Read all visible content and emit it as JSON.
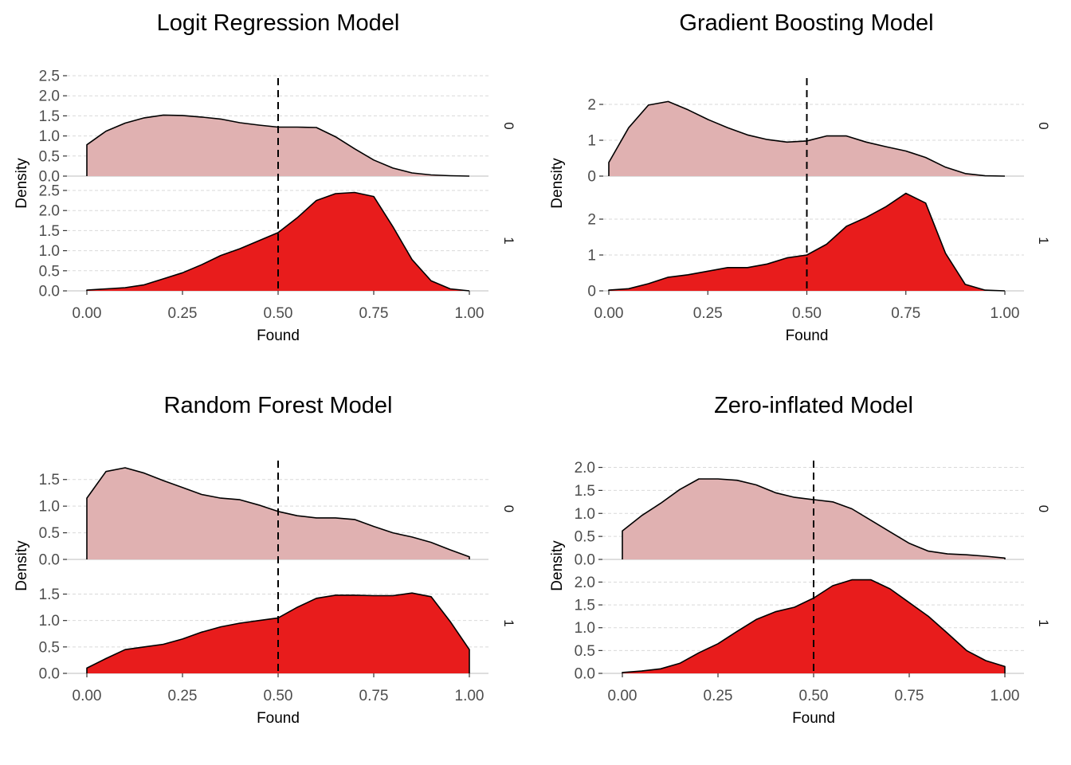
{
  "chart_data": [
    {
      "type": "area",
      "title": "Logit Regression Model",
      "xlabel": "Found",
      "ylabel": "Density",
      "xlim": [
        0,
        1
      ],
      "x_ticks": [
        "0.00",
        "0.25",
        "0.50",
        "0.75",
        "1.00"
      ],
      "cutoff": 0.5,
      "colors": {
        "0": "#e0b1b1",
        "1": "#e81c1c"
      },
      "panels": [
        {
          "strip": "0",
          "ylim": [
            0,
            2.5
          ],
          "y_ticks": [
            "0.0",
            "0.5",
            "1.0",
            "1.5",
            "2.0",
            "2.5"
          ],
          "x": [
            0,
            0.05,
            0.1,
            0.15,
            0.2,
            0.25,
            0.3,
            0.35,
            0.4,
            0.45,
            0.5,
            0.55,
            0.6,
            0.65,
            0.7,
            0.75,
            0.8,
            0.85,
            0.9,
            0.95,
            1.0
          ],
          "y": [
            0.78,
            1.12,
            1.32,
            1.45,
            1.52,
            1.51,
            1.47,
            1.42,
            1.33,
            1.27,
            1.22,
            1.22,
            1.21,
            0.98,
            0.68,
            0.4,
            0.2,
            0.08,
            0.03,
            0.01,
            0.0
          ]
        },
        {
          "strip": "1",
          "ylim": [
            0,
            2.5
          ],
          "y_ticks": [
            "0.0",
            "0.5",
            "1.0",
            "1.5",
            "2.0",
            "2.5"
          ],
          "x": [
            0,
            0.05,
            0.1,
            0.15,
            0.2,
            0.25,
            0.3,
            0.35,
            0.4,
            0.45,
            0.5,
            0.55,
            0.6,
            0.65,
            0.7,
            0.75,
            0.8,
            0.85,
            0.9,
            0.95,
            1.0
          ],
          "y": [
            0.02,
            0.05,
            0.08,
            0.15,
            0.3,
            0.45,
            0.65,
            0.88,
            1.05,
            1.25,
            1.45,
            1.82,
            2.25,
            2.42,
            2.45,
            2.35,
            1.6,
            0.78,
            0.25,
            0.05,
            0.0
          ]
        }
      ]
    },
    {
      "type": "area",
      "title": "Gradient Boosting Model",
      "xlabel": "Found",
      "ylabel": "Density",
      "xlim": [
        0,
        1
      ],
      "x_ticks": [
        "0.00",
        "0.25",
        "0.50",
        "0.75",
        "1.00"
      ],
      "cutoff": 0.5,
      "colors": {
        "0": "#e0b1b1",
        "1": "#e81c1c"
      },
      "panels": [
        {
          "strip": "0",
          "ylim": [
            0,
            2.8
          ],
          "y_ticks": [
            "0",
            "1",
            "2"
          ],
          "x": [
            0,
            0.05,
            0.1,
            0.15,
            0.2,
            0.25,
            0.3,
            0.35,
            0.4,
            0.45,
            0.5,
            0.55,
            0.6,
            0.65,
            0.7,
            0.75,
            0.8,
            0.85,
            0.9,
            0.95,
            1.0
          ],
          "y": [
            0.38,
            1.35,
            1.98,
            2.08,
            1.85,
            1.58,
            1.35,
            1.15,
            1.02,
            0.95,
            0.98,
            1.12,
            1.12,
            0.95,
            0.82,
            0.7,
            0.52,
            0.25,
            0.07,
            0.01,
            0.0
          ]
        },
        {
          "strip": "1",
          "ylim": [
            0,
            2.8
          ],
          "y_ticks": [
            "0",
            "1",
            "2"
          ],
          "x": [
            0,
            0.05,
            0.1,
            0.15,
            0.2,
            0.25,
            0.3,
            0.35,
            0.4,
            0.45,
            0.5,
            0.55,
            0.6,
            0.65,
            0.7,
            0.75,
            0.8,
            0.85,
            0.9,
            0.95,
            1.0
          ],
          "y": [
            0.02,
            0.06,
            0.2,
            0.38,
            0.45,
            0.55,
            0.65,
            0.65,
            0.75,
            0.92,
            1.0,
            1.3,
            1.8,
            2.05,
            2.35,
            2.72,
            2.45,
            1.05,
            0.18,
            0.02,
            0.0
          ]
        }
      ]
    },
    {
      "type": "area",
      "title": "Random Forest Model",
      "xlabel": "Found",
      "ylabel": "Density",
      "xlim": [
        0,
        1
      ],
      "x_ticks": [
        "0.00",
        "0.25",
        "0.50",
        "0.75",
        "1.00"
      ],
      "cutoff": 0.5,
      "colors": {
        "0": "#e0b1b1",
        "1": "#e81c1c"
      },
      "panels": [
        {
          "strip": "0",
          "ylim": [
            0,
            1.9
          ],
          "y_ticks": [
            "0.0",
            "0.5",
            "1.0",
            "1.5"
          ],
          "x": [
            0,
            0.05,
            0.1,
            0.15,
            0.2,
            0.25,
            0.3,
            0.35,
            0.4,
            0.45,
            0.5,
            0.55,
            0.6,
            0.65,
            0.7,
            0.75,
            0.8,
            0.85,
            0.9,
            0.95,
            1.0
          ],
          "y": [
            1.15,
            1.65,
            1.72,
            1.62,
            1.48,
            1.35,
            1.22,
            1.15,
            1.12,
            1.02,
            0.9,
            0.82,
            0.78,
            0.78,
            0.75,
            0.62,
            0.5,
            0.42,
            0.32,
            0.18,
            0.05
          ]
        },
        {
          "strip": "1",
          "ylim": [
            0,
            1.9
          ],
          "y_ticks": [
            "0.0",
            "0.5",
            "1.0",
            "1.5"
          ],
          "x": [
            0,
            0.05,
            0.1,
            0.15,
            0.2,
            0.25,
            0.3,
            0.35,
            0.4,
            0.45,
            0.5,
            0.55,
            0.6,
            0.65,
            0.7,
            0.75,
            0.8,
            0.85,
            0.9,
            0.95,
            1.0
          ],
          "y": [
            0.1,
            0.28,
            0.45,
            0.5,
            0.55,
            0.65,
            0.78,
            0.88,
            0.95,
            1.0,
            1.05,
            1.25,
            1.42,
            1.48,
            1.48,
            1.47,
            1.47,
            1.52,
            1.45,
            0.98,
            0.45
          ]
        }
      ]
    },
    {
      "type": "area",
      "title": "Zero-inflated Model",
      "xlabel": "Found",
      "ylabel": "Density",
      "xlim": [
        0,
        1
      ],
      "x_ticks": [
        "0.00",
        "0.25",
        "0.50",
        "0.75",
        "1.00"
      ],
      "cutoff": 0.5,
      "colors": {
        "0": "#e0b1b1",
        "1": "#e81c1c"
      },
      "panels": [
        {
          "strip": "0",
          "ylim": [
            0,
            2.2
          ],
          "y_ticks": [
            "0.0",
            "0.5",
            "1.0",
            "1.5",
            "2.0"
          ],
          "x": [
            0,
            0.05,
            0.1,
            0.15,
            0.2,
            0.25,
            0.3,
            0.35,
            0.4,
            0.45,
            0.5,
            0.55,
            0.6,
            0.65,
            0.7,
            0.75,
            0.8,
            0.85,
            0.9,
            0.95,
            1.0
          ],
          "y": [
            0.62,
            0.95,
            1.22,
            1.52,
            1.75,
            1.75,
            1.72,
            1.62,
            1.45,
            1.35,
            1.3,
            1.25,
            1.1,
            0.85,
            0.6,
            0.35,
            0.18,
            0.12,
            0.1,
            0.07,
            0.03
          ]
        },
        {
          "strip": "1",
          "ylim": [
            0,
            2.2
          ],
          "y_ticks": [
            "0.0",
            "0.5",
            "1.0",
            "1.5",
            "2.0"
          ],
          "x": [
            0,
            0.05,
            0.1,
            0.15,
            0.2,
            0.25,
            0.3,
            0.35,
            0.4,
            0.45,
            0.5,
            0.55,
            0.6,
            0.65,
            0.7,
            0.75,
            0.8,
            0.85,
            0.9,
            0.95,
            1.0
          ],
          "y": [
            0.02,
            0.05,
            0.1,
            0.22,
            0.45,
            0.65,
            0.92,
            1.18,
            1.35,
            1.45,
            1.65,
            1.92,
            2.05,
            2.05,
            1.85,
            1.55,
            1.25,
            0.88,
            0.5,
            0.28,
            0.15
          ]
        }
      ]
    }
  ]
}
